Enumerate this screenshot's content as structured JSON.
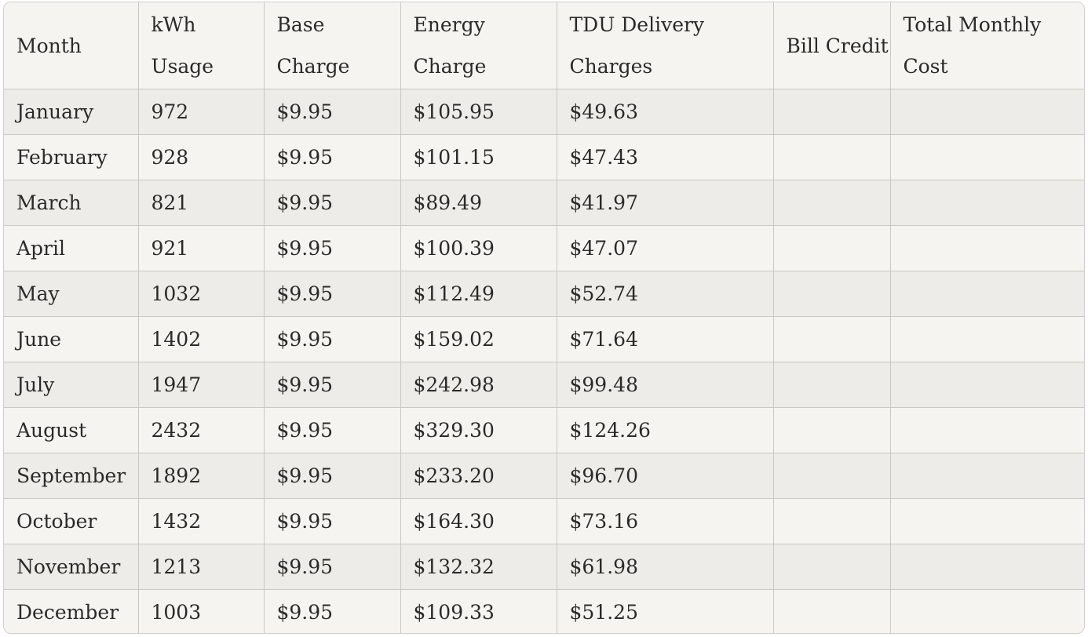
{
  "table": {
    "headers": [
      "Month",
      "kWh Usage",
      "Base Charge",
      "Energy Charge",
      "TDU Delivery Charges",
      "Bill Credit",
      "Total Monthly Cost"
    ],
    "rows": [
      [
        "January",
        "972",
        "$9.95",
        "$105.95",
        "$49.63",
        "",
        ""
      ],
      [
        "February",
        "928",
        "$9.95",
        "$101.15",
        "$47.43",
        "",
        ""
      ],
      [
        "March",
        "821",
        "$9.95",
        "$89.49",
        "$41.97",
        "",
        ""
      ],
      [
        "April",
        "921",
        "$9.95",
        "$100.39",
        "$47.07",
        "",
        ""
      ],
      [
        "May",
        "1032",
        "$9.95",
        "$112.49",
        "$52.74",
        "",
        ""
      ],
      [
        "June",
        "1402",
        "$9.95",
        "$159.02",
        "$71.64",
        "",
        ""
      ],
      [
        "July",
        "1947",
        "$9.95",
        "$242.98",
        "$99.48",
        "",
        ""
      ],
      [
        "August",
        "2432",
        "$9.95",
        "$329.30",
        "$124.26",
        "",
        ""
      ],
      [
        "September",
        "1892",
        "$9.95",
        "$233.20",
        "$96.70",
        "",
        ""
      ],
      [
        "October",
        "1432",
        "$9.95",
        "$164.30",
        "$73.16",
        "",
        ""
      ],
      [
        "November",
        "1213",
        "$9.95",
        "$132.32",
        "$61.98",
        "",
        ""
      ],
      [
        "December",
        "1003",
        "$9.95",
        "$109.33",
        "$51.25",
        "",
        ""
      ]
    ]
  },
  "colors": {
    "border": "#c9c8c3",
    "row_shaded": "#edece8",
    "row_plain": "#f5f4f0",
    "text": "#2a2a28"
  }
}
